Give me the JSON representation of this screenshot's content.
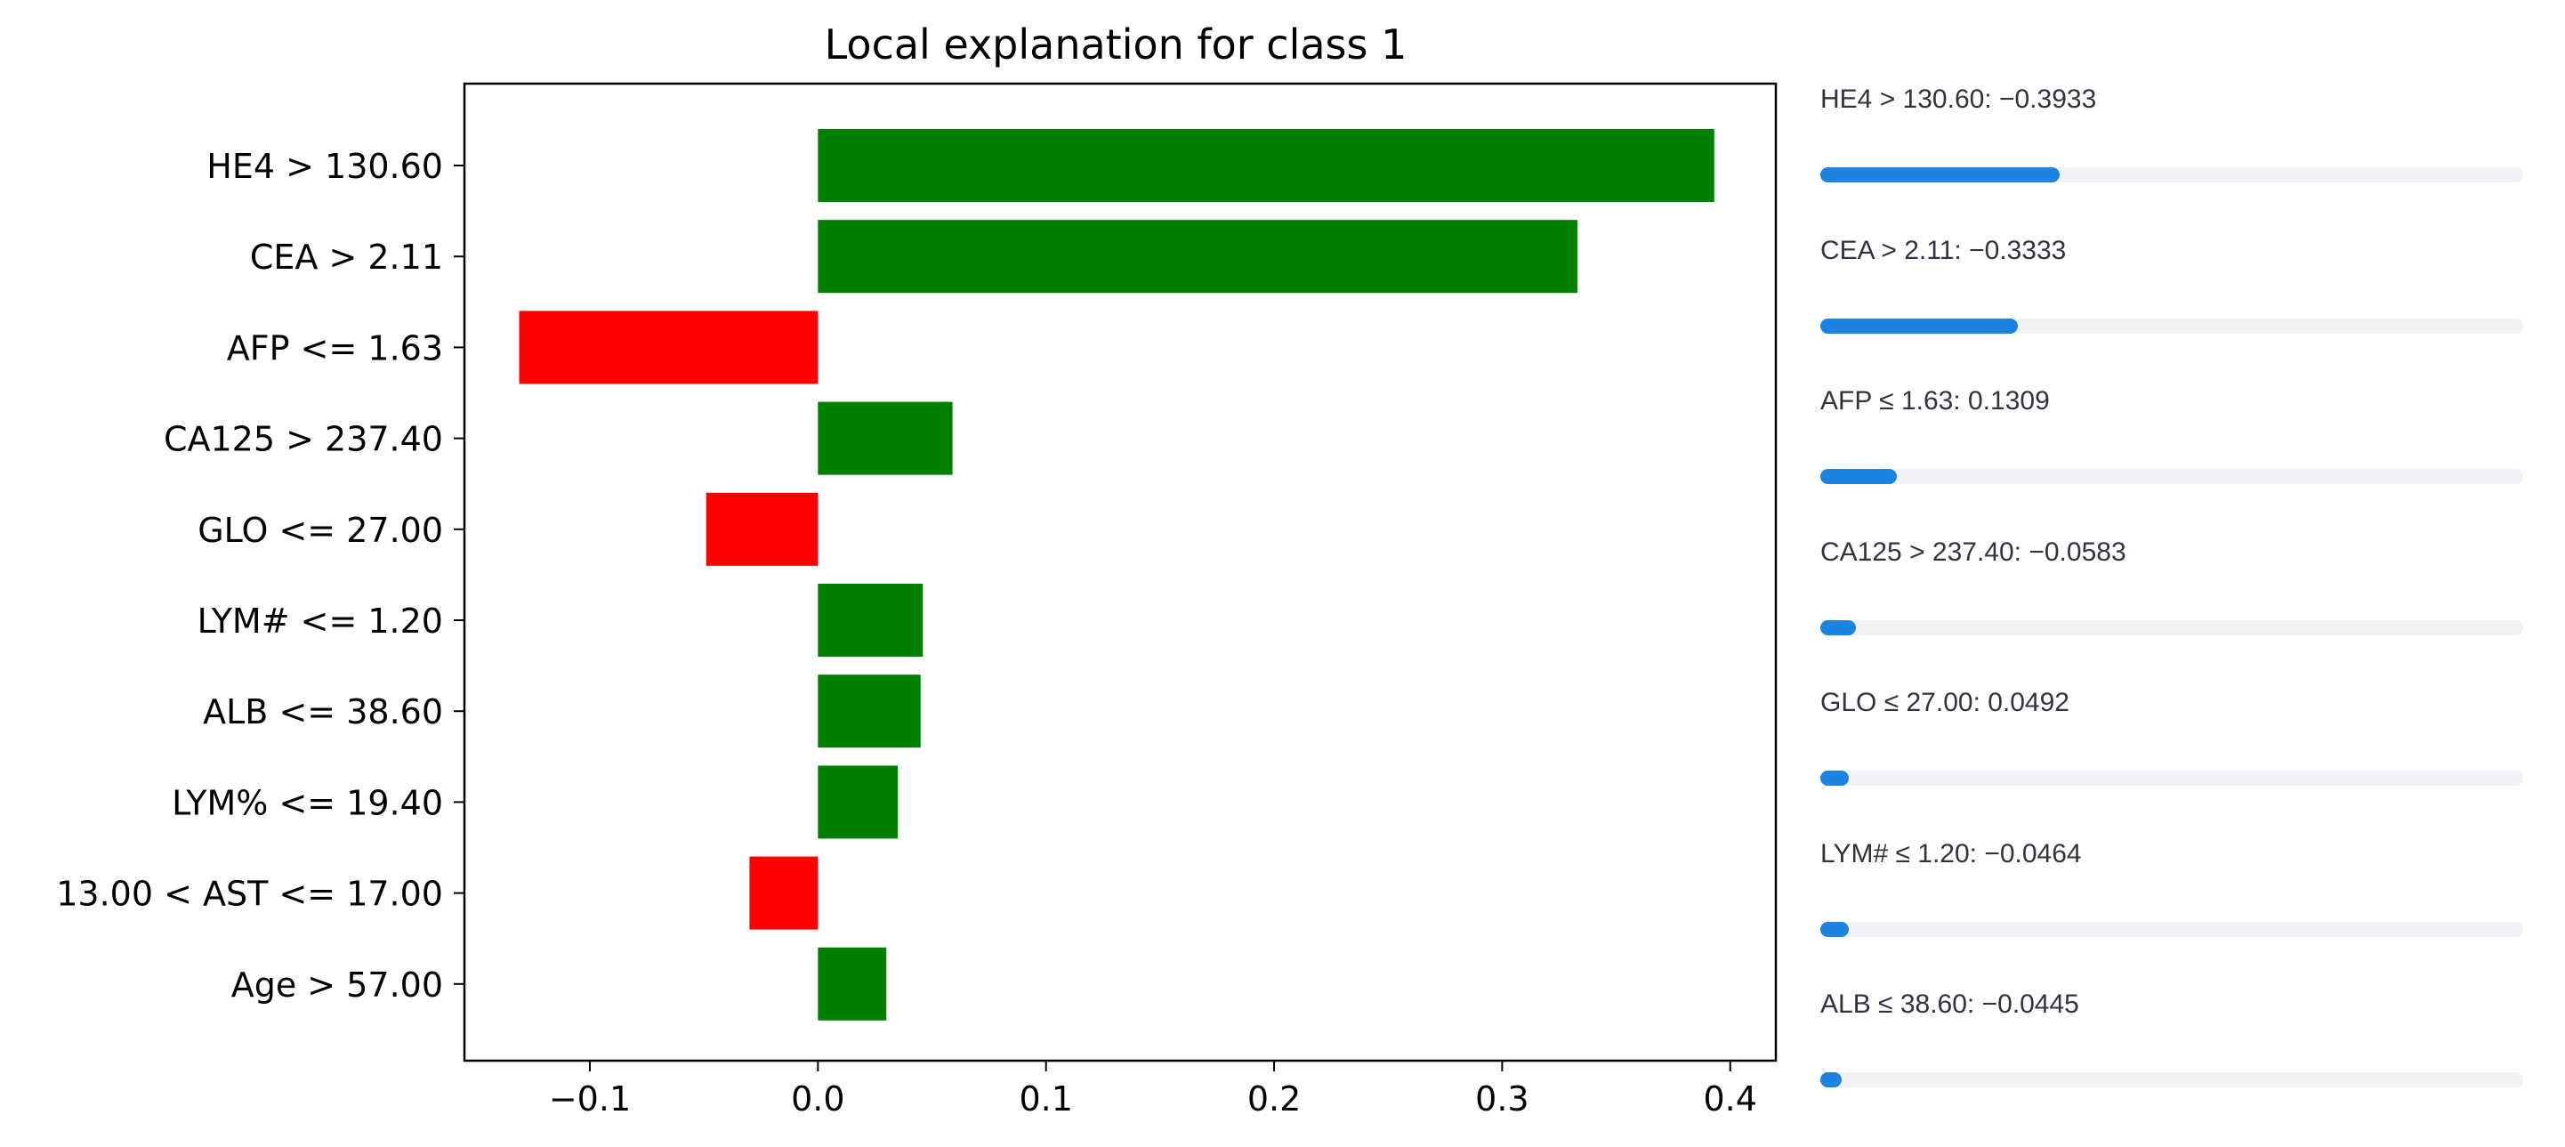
{
  "chart_data": {
    "type": "bar",
    "orientation": "horizontal",
    "title": "Local explanation for class 1",
    "xlabel": "",
    "ylabel": "",
    "xlim": [
      -0.155,
      0.42
    ],
    "xticks": [
      -0.1,
      0.0,
      0.1,
      0.2,
      0.3,
      0.4
    ],
    "xtick_labels": [
      "−0.1",
      "0.0",
      "0.1",
      "0.2",
      "0.3",
      "0.4"
    ],
    "categories": [
      "HE4 > 130.60",
      "CEA > 2.11",
      "AFP <= 1.63",
      "CA125 > 237.40",
      "GLO <= 27.00",
      "LYM# <= 1.20",
      "ALB <= 38.60",
      "LYM% <= 19.40",
      "13.00 < AST <= 17.00",
      "Age > 57.00"
    ],
    "values": [
      0.393,
      0.333,
      -0.131,
      0.059,
      -0.049,
      0.046,
      0.045,
      0.035,
      -0.03,
      0.03
    ],
    "positive_color": "#008000",
    "negative_color": "#ff0000",
    "grid": false
  },
  "side_bars": {
    "fill_color": "#1c83e1",
    "track_color": "#f0f2f6",
    "items": [
      {
        "label": "HE4 > 130.60: −0.3933",
        "fraction": 0.3403
      },
      {
        "label": "CEA > 2.11: −0.3333",
        "fraction": 0.2809
      },
      {
        "label": "AFP ≤ 1.63: 0.1309",
        "fraction": 0.1085
      },
      {
        "label": "CA125 > 237.40: −0.0583",
        "fraction": 0.0505
      },
      {
        "label": "GLO ≤ 27.00: 0.0492",
        "fraction": 0.0404
      },
      {
        "label": "LYM# ≤ 1.20: −0.0464",
        "fraction": 0.0404
      },
      {
        "label": "ALB ≤ 38.60: −0.0445",
        "fraction": 0.0303
      }
    ]
  }
}
